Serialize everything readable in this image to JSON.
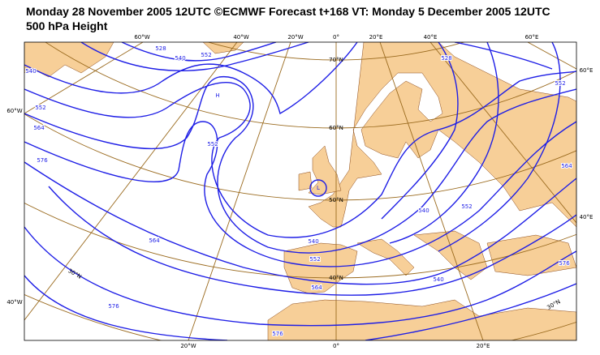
{
  "header": {
    "title": "Monday 28 November 2005 12UTC ©ECMWF Forecast t+168 VT: Monday 5 December 2005 12UTC",
    "subtitle": "500 hPa Height"
  },
  "map": {
    "top_labels": [
      "60°W",
      "40°W",
      "20°W",
      "0°",
      "20°E",
      "40°E",
      "60°E"
    ],
    "bottom_labels": [
      "20°W",
      "0°",
      "20°E"
    ],
    "left_labels": [
      "60°W",
      "40°W"
    ],
    "right_labels": [
      "60°E",
      "40°E"
    ],
    "lat_labels": [
      "70°N",
      "60°N",
      "50°N",
      "40°N",
      "30°N",
      "30°N"
    ],
    "contour_labels": [
      "528",
      "540",
      "552",
      "540",
      "552",
      "564",
      "576",
      "552",
      "564",
      "576",
      "540",
      "552",
      "564",
      "576",
      "540",
      "552",
      "564",
      "576",
      "552",
      "528",
      "540"
    ],
    "pressure_centers": [
      "H",
      "L"
    ]
  }
}
